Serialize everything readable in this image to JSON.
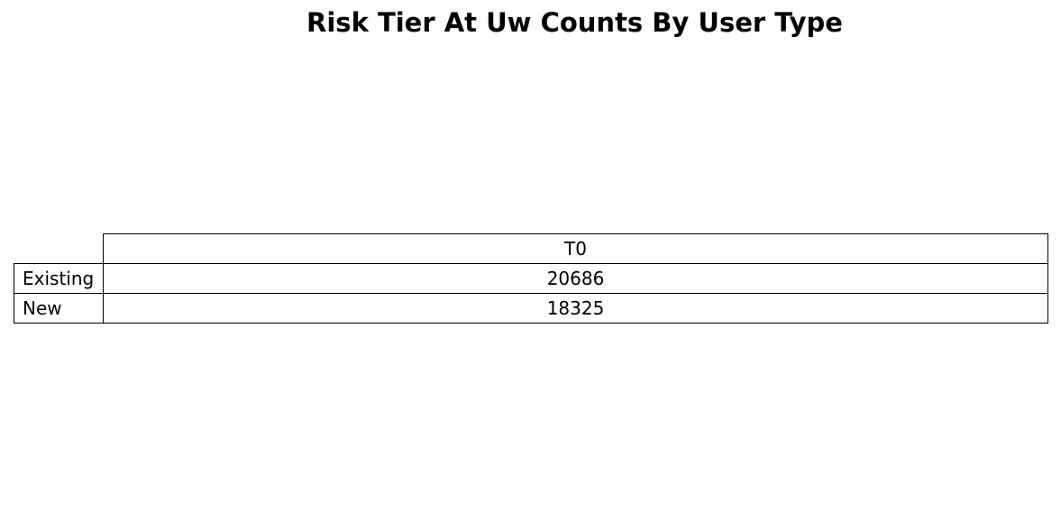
{
  "chart_data": {
    "type": "table",
    "title": "Risk Tier At Uw Counts By User Type",
    "columns": [
      "T0"
    ],
    "rows": [
      {
        "label": "Existing",
        "values": [
          20686
        ]
      },
      {
        "label": "New",
        "values": [
          18325
        ]
      }
    ]
  }
}
